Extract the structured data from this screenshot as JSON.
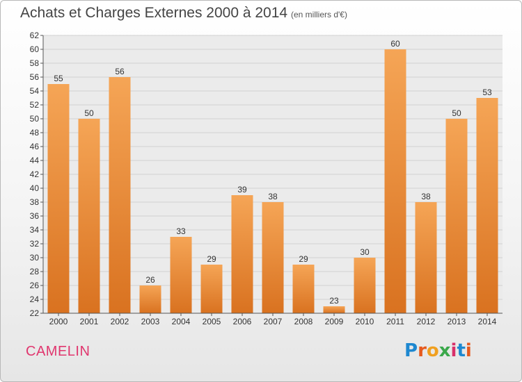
{
  "header": {
    "title": "Achats et Charges Externes 2000 à 2014",
    "subtitle": "(en milliers d'€)"
  },
  "footer": {
    "commune": "CAMELIN",
    "logo_text": "Proxiti",
    "logo_colors": [
      "#1e88d0",
      "#e65a1e",
      "#f0a020",
      "#3aa84a",
      "#d8306a",
      "#1e88d0",
      "#e65a1e"
    ]
  },
  "colors": {
    "bar_light": "#f5a556",
    "bar_dark": "#d97220",
    "grid": "#d0d0d0",
    "plot_bg": "#ebebeb"
  },
  "chart_data": {
    "type": "bar",
    "title": "Achats et Charges Externes 2000 à 2014",
    "subtitle": "(en milliers d'€)",
    "categories": [
      "2000",
      "2001",
      "2002",
      "2003",
      "2004",
      "2005",
      "2006",
      "2007",
      "2008",
      "2009",
      "2010",
      "2011",
      "2012",
      "2013",
      "2014"
    ],
    "values": [
      55,
      50,
      56,
      26,
      33,
      29,
      39,
      38,
      29,
      23,
      30,
      60,
      38,
      50,
      53
    ],
    "ylim": [
      22,
      62
    ],
    "yticks": [
      22,
      24,
      26,
      28,
      30,
      32,
      34,
      36,
      38,
      40,
      42,
      44,
      46,
      48,
      50,
      52,
      54,
      56,
      58,
      60,
      62
    ],
    "grid": true,
    "data_labels": true
  }
}
